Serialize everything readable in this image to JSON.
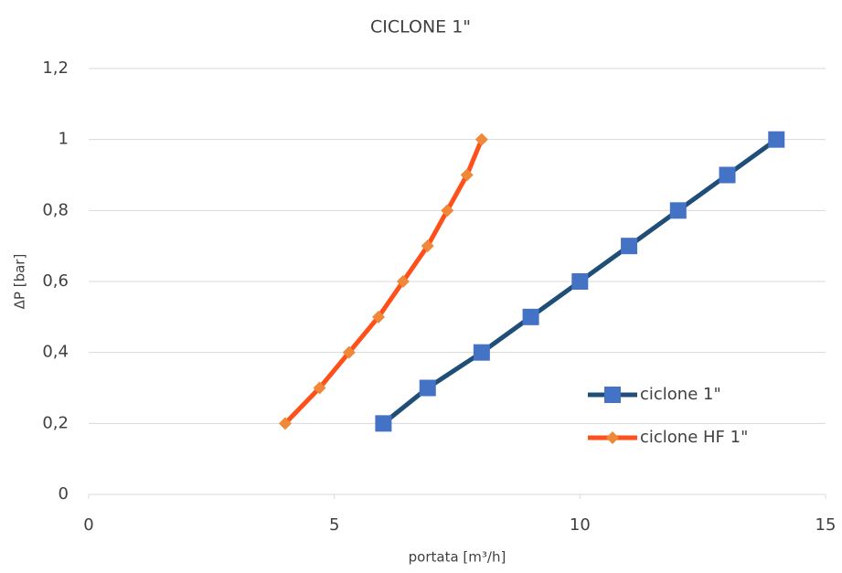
{
  "chart_data": {
    "type": "line",
    "title": "CICLONE 1\"",
    "xlabel": "portata [m³/h]",
    "ylabel": "ΔP [bar]",
    "xlim": [
      0,
      15
    ],
    "xticks": [
      0,
      5,
      10,
      15
    ],
    "ylim": [
      0,
      1.2
    ],
    "yticks": [
      0,
      {
        "value": 0.2,
        "label": "0,2"
      },
      {
        "value": 0.4,
        "label": "0,4"
      },
      {
        "value": 0.6,
        "label": "0,6"
      },
      {
        "value": 0.8,
        "label": "0,8"
      },
      1,
      {
        "value": 1.2,
        "label": "1,2"
      }
    ],
    "grid": true,
    "legend": "right",
    "series": [
      {
        "name": "ciclone 1\"",
        "color": "#1f4e79",
        "marker_color": "#4472c4",
        "marker": "square",
        "x": [
          6,
          6.9,
          8,
          9,
          10,
          11,
          12,
          13,
          14
        ],
        "values": [
          0.2,
          0.3,
          0.4,
          0.5,
          0.6,
          0.7,
          0.8,
          0.9,
          1.0
        ]
      },
      {
        "name": "ciclone HF 1\"",
        "color": "#ff4f1a",
        "marker_color": "#f0883a",
        "marker": "diamond",
        "x": [
          4,
          4.7,
          5.3,
          5.9,
          6.4,
          6.9,
          7.3,
          7.7,
          8
        ],
        "values": [
          0.2,
          0.3,
          0.4,
          0.5,
          0.6,
          0.7,
          0.8,
          0.9,
          1.0
        ]
      }
    ]
  }
}
